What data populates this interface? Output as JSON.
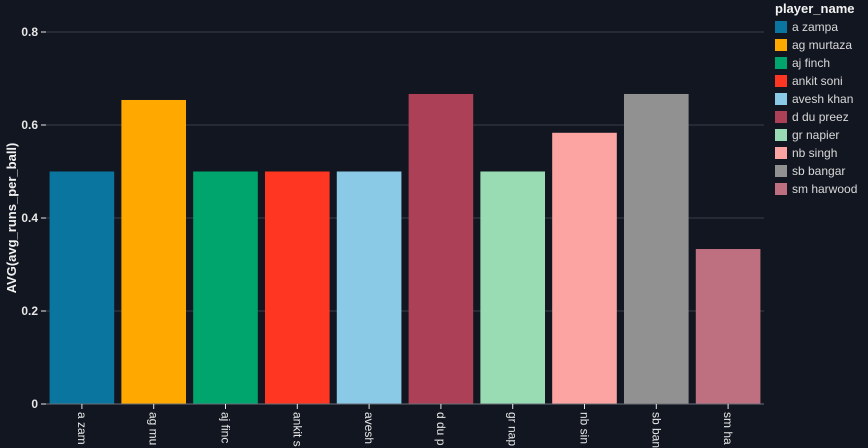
{
  "chart_data": {
    "type": "bar",
    "title": "",
    "xlabel": "",
    "ylabel": "AVG(avg_runs_per_ball)",
    "ylim": [
      0,
      0.8
    ],
    "yticks": [
      0,
      0.2,
      0.4,
      0.6,
      0.8
    ],
    "ytick_labels": [
      "0",
      "0.2",
      "0.4",
      "0.6",
      "0.8"
    ],
    "grid": true,
    "legend": {
      "title": "player_name",
      "placement": "right"
    },
    "categories": [
      "a zampa",
      "ag murtaza",
      "aj finch",
      "ankit soni",
      "avesh khan",
      "d du preez",
      "gr napier",
      "nb singh",
      "sb bangar",
      "sm harwood"
    ],
    "tick_labels": [
      "a zam",
      "ag mu",
      "aj finc",
      "ankit s",
      "avesh",
      "d du p",
      "gr nap",
      "nb sin",
      "sb ban",
      "sm ha"
    ],
    "values": [
      0.5,
      0.6538,
      0.5,
      0.5,
      0.5,
      0.6667,
      0.5,
      0.5833,
      0.6667,
      0.3333
    ],
    "colors": [
      "#0a76a0",
      "#ffa800",
      "#00a56e",
      "#ff3621",
      "#8bcae7",
      "#ab4057",
      "#99dcb4",
      "#fca4a1",
      "#919191",
      "#bf7080"
    ]
  }
}
